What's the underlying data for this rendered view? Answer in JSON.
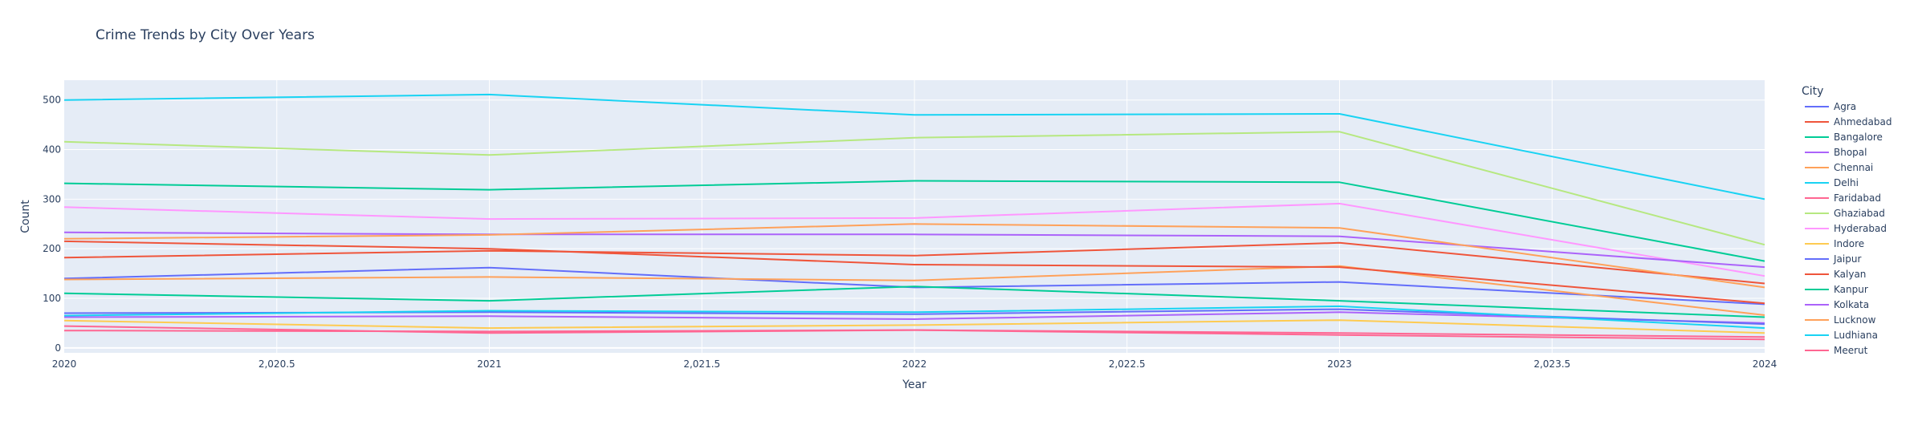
{
  "chart_data": {
    "type": "line",
    "title": "Crime Trends by City Over Years",
    "xlabel": "Year",
    "ylabel": "Count",
    "x": [
      2020,
      2021,
      2022,
      2023,
      2024
    ],
    "xlim": [
      2020,
      2024
    ],
    "ylim": [
      -10,
      540
    ],
    "x_ticks": [
      2020,
      2020.5,
      2021,
      2021.5,
      2022,
      2022.5,
      2023,
      2023.5,
      2024
    ],
    "x_tick_labels": [
      "2020",
      "2,020.5",
      "2021",
      "2,021.5",
      "2022",
      "2,022.5",
      "2023",
      "2,023.5",
      "2024"
    ],
    "y_ticks": [
      0,
      100,
      200,
      300,
      400,
      500
    ],
    "y_tick_labels": [
      "0",
      "100",
      "200",
      "300",
      "400",
      "500"
    ],
    "grid": true,
    "legend_title": "City",
    "legend_position": "right",
    "series": [
      {
        "name": "Agra",
        "color": "#636efa",
        "values": [
          140,
          162,
          122,
          133,
          88
        ]
      },
      {
        "name": "Ahmedabad",
        "color": "#EF553B",
        "values": [
          182,
          196,
          186,
          212,
          130
        ]
      },
      {
        "name": "Bangalore",
        "color": "#00cc96",
        "values": [
          110,
          95,
          124,
          95,
          62
        ]
      },
      {
        "name": "Bhopal",
        "color": "#ab63fa",
        "values": [
          62,
          64,
          58,
          72,
          50
        ]
      },
      {
        "name": "Chennai",
        "color": "#FFA15A",
        "values": [
          138,
          143,
          136,
          165,
          66
        ]
      },
      {
        "name": "Delhi",
        "color": "#19d3f3",
        "values": [
          500,
          511,
          470,
          472,
          300
        ]
      },
      {
        "name": "Faridabad",
        "color": "#FF6692",
        "values": [
          44,
          30,
          36,
          30,
          22
        ]
      },
      {
        "name": "Ghaziabad",
        "color": "#B6E880",
        "values": [
          416,
          389,
          424,
          436,
          208
        ]
      },
      {
        "name": "Hyderabad",
        "color": "#FF97FF",
        "values": [
          284,
          260,
          262,
          291,
          145
        ]
      },
      {
        "name": "Indore",
        "color": "#FECB52",
        "values": [
          55,
          40,
          46,
          56,
          30
        ]
      },
      {
        "name": "Jaipur",
        "color": "#636efa",
        "values": [
          70,
          72,
          68,
          78,
          48
        ]
      },
      {
        "name": "Kalyan",
        "color": "#EF553B",
        "values": [
          215,
          200,
          168,
          163,
          90
        ]
      },
      {
        "name": "Kanpur",
        "color": "#00cc96",
        "values": [
          332,
          319,
          337,
          334,
          175
        ]
      },
      {
        "name": "Kolkata",
        "color": "#ab63fa",
        "values": [
          233,
          229,
          229,
          225,
          163
        ]
      },
      {
        "name": "Lucknow",
        "color": "#FFA15A",
        "values": [
          220,
          228,
          250,
          242,
          122
        ]
      },
      {
        "name": "Ludhiana",
        "color": "#19d3f3",
        "values": [
          65,
          75,
          72,
          84,
          40
        ]
      },
      {
        "name": "Meerut",
        "color": "#FF6692",
        "values": [
          35,
          33,
          36,
          26,
          17
        ]
      }
    ]
  }
}
